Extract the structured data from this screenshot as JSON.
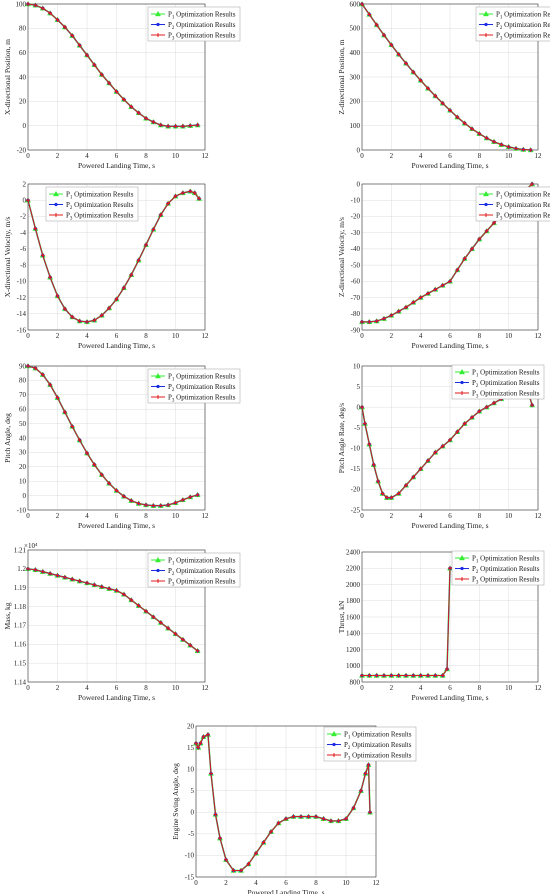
{
  "legend": [
    {
      "prefix": "P",
      "sub": "1",
      "suffix": " Optimization Results",
      "color": "#33ee33",
      "marker": "triangle"
    },
    {
      "prefix": "P",
      "sub": "2",
      "suffix": " Optimization Results",
      "color": "#1a2de0",
      "marker": "circle"
    },
    {
      "prefix": "P",
      "sub": "3",
      "suffix": " Optimization Results",
      "color": "#e01a1a",
      "marker": "plus"
    }
  ],
  "chart_data": [
    {
      "type": "line",
      "xlabel": "Powered Landing Time, s",
      "ylabel": "X-directional Position, m",
      "xlim": [
        0,
        12
      ],
      "ylim": [
        -20,
        100
      ],
      "xticks": [
        0,
        2,
        4,
        6,
        8,
        10,
        12
      ],
      "yticks": [
        -20,
        0,
        20,
        40,
        60,
        80,
        100
      ],
      "x": [
        0,
        0.5,
        1,
        1.5,
        2,
        2.5,
        3,
        3.5,
        4,
        4.5,
        5,
        5.5,
        6,
        6.5,
        7,
        7.5,
        8,
        8.5,
        9,
        9.5,
        10,
        10.5,
        11,
        11.5
      ],
      "y": [
        100,
        99,
        96.5,
        92.5,
        87,
        81,
        74,
        66,
        58,
        50,
        42,
        35,
        28,
        21.5,
        15.5,
        10.5,
        6,
        3,
        0.5,
        -0.5,
        -0.5,
        -0.5,
        0,
        0.5
      ],
      "series": [
        {
          "name": "P1 Optimization Results"
        },
        {
          "name": "P2 Optimization Results"
        },
        {
          "name": "P3 Optimization Results"
        }
      ]
    },
    {
      "type": "line",
      "xlabel": "Powered Landing Time, s",
      "ylabel": "Z-directional Position, m",
      "xlim": [
        0,
        12
      ],
      "ylim": [
        0,
        600
      ],
      "xticks": [
        0,
        2,
        4,
        6,
        8,
        10,
        12
      ],
      "yticks": [
        0,
        100,
        200,
        300,
        400,
        500,
        600
      ],
      "x": [
        0,
        0.5,
        1,
        1.5,
        2,
        2.5,
        3,
        3.5,
        4,
        4.5,
        5,
        5.5,
        6,
        6.5,
        7,
        7.5,
        8,
        8.5,
        9,
        9.5,
        10,
        10.5,
        11,
        11.5
      ],
      "y": [
        600,
        557,
        514,
        472,
        432,
        393,
        356,
        320,
        286,
        253,
        222,
        192,
        163,
        135,
        110,
        87,
        67,
        49,
        34,
        22,
        13,
        6,
        2,
        0
      ],
      "series": [
        {
          "name": "P1 Optimization Results"
        },
        {
          "name": "P2 Optimization Results"
        },
        {
          "name": "P3 Optimization Results"
        }
      ]
    },
    {
      "type": "line",
      "xlabel": "Powered Landing Time, s",
      "ylabel": "X-directional Velocity, m/s",
      "xlim": [
        0,
        12
      ],
      "ylim": [
        -16,
        2
      ],
      "xticks": [
        0,
        2,
        4,
        6,
        8,
        10,
        12
      ],
      "yticks": [
        -16,
        -14,
        -12,
        -10,
        -8,
        -6,
        -4,
        -2,
        0,
        2
      ],
      "x": [
        0,
        0.5,
        1,
        1.5,
        2,
        2.5,
        3,
        3.5,
        4,
        4.5,
        5,
        5.5,
        6,
        6.5,
        7,
        7.5,
        8,
        8.5,
        9,
        9.5,
        10,
        10.5,
        11,
        11.3,
        11.6
      ],
      "y": [
        0,
        -3.5,
        -6.8,
        -9.5,
        -11.8,
        -13.4,
        -14.4,
        -14.9,
        -15,
        -14.8,
        -14.2,
        -13.3,
        -12.2,
        -10.8,
        -9.2,
        -7.4,
        -5.5,
        -3.6,
        -1.8,
        -0.4,
        0.5,
        0.9,
        1.1,
        0.9,
        0.2
      ],
      "series": [
        {
          "name": "P1 Optimization Results"
        },
        {
          "name": "P2 Optimization Results"
        },
        {
          "name": "P3 Optimization Results"
        }
      ]
    },
    {
      "type": "line",
      "xlabel": "Powered Landing Time, s",
      "ylabel": "Z-directional Velocity, m/s",
      "xlim": [
        0,
        12
      ],
      "ylim": [
        -90,
        0
      ],
      "xticks": [
        0,
        2,
        4,
        6,
        8,
        10,
        12
      ],
      "yticks": [
        -90,
        -80,
        -70,
        -60,
        -50,
        -40,
        -30,
        -20,
        -10,
        0
      ],
      "x": [
        0,
        0.5,
        1,
        1.5,
        2,
        2.5,
        3,
        3.5,
        4,
        4.5,
        5,
        5.5,
        6,
        6.5,
        7,
        7.5,
        8,
        8.5,
        9,
        9.5,
        10,
        10.5,
        11,
        11.6
      ],
      "y": [
        -85,
        -85,
        -84.5,
        -83,
        -81,
        -78.5,
        -76,
        -73,
        -70,
        -67.5,
        -65,
        -62.5,
        -60,
        -53,
        -46,
        -40,
        -34,
        -29,
        -24,
        -19,
        -14,
        -9.5,
        -5,
        0
      ],
      "series": [
        {
          "name": "P1 Optimization Results"
        },
        {
          "name": "P2 Optimization Results"
        },
        {
          "name": "P3 Optimization Results"
        }
      ]
    },
    {
      "type": "line",
      "xlabel": "Powered Landing Time, s",
      "ylabel": "Pitch Angle, deg",
      "xlim": [
        0,
        12
      ],
      "ylim": [
        -10,
        90
      ],
      "xticks": [
        0,
        2,
        4,
        6,
        8,
        10,
        12
      ],
      "yticks": [
        -10,
        0,
        10,
        20,
        30,
        40,
        50,
        60,
        70,
        80,
        90
      ],
      "x": [
        0,
        0.5,
        1,
        1.5,
        2,
        2.5,
        3,
        3.5,
        4,
        4.5,
        5,
        5.5,
        6,
        6.5,
        7,
        7.5,
        8,
        8.5,
        9,
        9.5,
        10,
        10.5,
        11,
        11.5
      ],
      "y": [
        90,
        88.5,
        84,
        77,
        68,
        58,
        48,
        38.5,
        29.5,
        21.5,
        14.5,
        8.5,
        3.5,
        -0.5,
        -3.5,
        -5.5,
        -6.5,
        -7,
        -7,
        -6.5,
        -5,
        -3,
        -1,
        0.5
      ],
      "series": [
        {
          "name": "P1 Optimization Results"
        },
        {
          "name": "P2 Optimization Results"
        },
        {
          "name": "P3 Optimization Results"
        }
      ]
    },
    {
      "type": "line",
      "xlabel": "Powered Landing Time, s",
      "ylabel": "Pitch Angle Rate, deg/s",
      "xlim": [
        0,
        12
      ],
      "ylim": [
        -25,
        10
      ],
      "xticks": [
        0,
        2,
        4,
        6,
        8,
        10,
        12
      ],
      "yticks": [
        -25,
        -20,
        -15,
        -10,
        -5,
        0,
        5,
        10
      ],
      "x": [
        0,
        0.2,
        0.5,
        0.8,
        1.1,
        1.4,
        1.7,
        2,
        2.5,
        3,
        3.5,
        4,
        4.5,
        5,
        5.5,
        6,
        6.5,
        7,
        7.5,
        8,
        8.5,
        9,
        9.5,
        10,
        10.5,
        11,
        11.3,
        11.6
      ],
      "y": [
        0,
        -4,
        -9,
        -14,
        -18,
        -21,
        -22,
        -22,
        -21,
        -19,
        -17,
        -15,
        -13,
        -11,
        -9.5,
        -8,
        -6,
        -4,
        -2.5,
        -1,
        0,
        1,
        2,
        3,
        4.5,
        5.5,
        4,
        0.5
      ],
      "series": [
        {
          "name": "P1 Optimization Results"
        },
        {
          "name": "P2 Optimization Results"
        },
        {
          "name": "P3 Optimization Results"
        }
      ]
    },
    {
      "type": "line",
      "xlabel": "Powered Landing Time, s",
      "ylabel": "Mass, kg",
      "y_exponent": "×10⁴",
      "xlim": [
        0,
        12
      ],
      "ylim": [
        1.14,
        1.21
      ],
      "xticks": [
        0,
        2,
        4,
        6,
        8,
        10,
        12
      ],
      "yticks": [
        1.14,
        1.15,
        1.16,
        1.17,
        1.18,
        1.19,
        1.2,
        1.21
      ],
      "ytick_labels": [
        "1.14",
        "1.15",
        "1.16",
        "1.17",
        "1.18",
        "1.19",
        "1.2",
        "1.21"
      ],
      "x": [
        0,
        0.5,
        1,
        1.5,
        2,
        2.5,
        3,
        3.5,
        4,
        4.5,
        5,
        5.5,
        6,
        6.5,
        7,
        7.5,
        8,
        8.5,
        9,
        9.5,
        10,
        10.5,
        11,
        11.5
      ],
      "y": [
        1.2,
        1.1995,
        1.1985,
        1.1975,
        1.1965,
        1.1955,
        1.1945,
        1.1935,
        1.1925,
        1.1915,
        1.1905,
        1.1895,
        1.1885,
        1.1865,
        1.1835,
        1.1805,
        1.1775,
        1.1745,
        1.1715,
        1.1685,
        1.1655,
        1.1625,
        1.1595,
        1.1565
      ],
      "series": [
        {
          "name": "P1 Optimization Results"
        },
        {
          "name": "P2 Optimization Results"
        },
        {
          "name": "P3 Optimization Results"
        }
      ]
    },
    {
      "type": "line",
      "xlabel": "Powered Landing Time, s",
      "ylabel": "Thrust, kN",
      "xlim": [
        0,
        12
      ],
      "ylim": [
        800,
        2400
      ],
      "xticks": [
        0,
        2,
        4,
        6,
        8,
        10,
        12
      ],
      "yticks": [
        800,
        1000,
        1200,
        1400,
        1600,
        1800,
        2000,
        2200,
        2400
      ],
      "x": [
        0,
        0.5,
        1,
        1.5,
        2,
        2.5,
        3,
        3.5,
        4,
        4.5,
        5,
        5.5,
        5.8,
        6,
        6.2,
        6.5,
        7,
        7.5,
        8,
        8.5,
        9,
        9.5,
        10,
        10.5,
        11,
        11.5
      ],
      "y": [
        880,
        880,
        880,
        880,
        880,
        880,
        880,
        880,
        880,
        880,
        880,
        880,
        960,
        2200,
        2200,
        2200,
        2200,
        2200,
        2200,
        2200,
        2200,
        2200,
        2200,
        2200,
        2200,
        2200
      ],
      "series": [
        {
          "name": "P1 Optimization Results"
        },
        {
          "name": "P2 Optimization Results"
        },
        {
          "name": "P3 Optimization Results"
        }
      ]
    },
    {
      "type": "line",
      "xlabel": "Powered Landing Time, s",
      "ylabel": "Engine Swing Angle, deg",
      "xlim": [
        0,
        12
      ],
      "ylim": [
        -15,
        20
      ],
      "xticks": [
        0,
        2,
        4,
        6,
        8,
        10,
        12
      ],
      "yticks": [
        -15,
        -10,
        -5,
        0,
        5,
        10,
        15,
        20
      ],
      "x": [
        0,
        0.15,
        0.3,
        0.5,
        0.8,
        1,
        1.3,
        1.6,
        2,
        2.5,
        3,
        3.5,
        4,
        4.5,
        5,
        5.5,
        6,
        6.5,
        7,
        7.5,
        8,
        8.5,
        9,
        9.5,
        10,
        10.5,
        11,
        11.3,
        11.5,
        11.6
      ],
      "y": [
        16,
        15,
        16,
        17.5,
        18,
        9,
        -0.5,
        -6,
        -11,
        -13.5,
        -13.5,
        -12,
        -9.5,
        -7,
        -4.5,
        -2.5,
        -1.5,
        -1,
        -1,
        -1,
        -1,
        -1.5,
        -2,
        -2,
        -1.5,
        1,
        5,
        9,
        11,
        0
      ],
      "series": [
        {
          "name": "P1 Optimization Results"
        },
        {
          "name": "P2 Optimization Results"
        },
        {
          "name": "P3 Optimization Results"
        }
      ]
    }
  ]
}
